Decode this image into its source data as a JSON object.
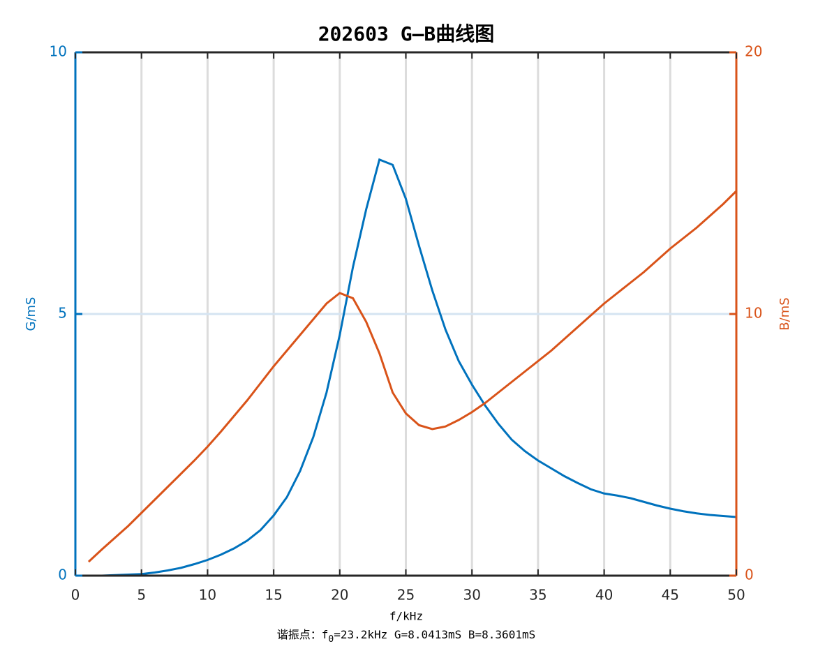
{
  "chart_data": {
    "type": "line",
    "title": "202603 G—B曲线图",
    "xlabel": "f/kHz",
    "ylabel": "G/mS",
    "y2label": "B/mS",
    "annotation": {
      "prefix": "谐振点：f",
      "subscript": "0",
      "suffix": "=23.2kHz  G=8.0413mS  B=8.3601mS"
    },
    "x": [
      1,
      2,
      3,
      4,
      5,
      6,
      7,
      8,
      9,
      10,
      11,
      12,
      13,
      14,
      15,
      16,
      17,
      18,
      19,
      20,
      21,
      22,
      23,
      24,
      25,
      26,
      27,
      28,
      29,
      30,
      31,
      32,
      33,
      34,
      35,
      36,
      37,
      38,
      39,
      40,
      41,
      42,
      43,
      44,
      45,
      46,
      47,
      48,
      49,
      50
    ],
    "series": [
      {
        "name": "G",
        "color": "#0072bd",
        "axis": "y",
        "values": [
          0,
          0,
          0.01,
          0.02,
          0.03,
          0.06,
          0.1,
          0.15,
          0.22,
          0.3,
          0.4,
          0.52,
          0.67,
          0.87,
          1.15,
          1.5,
          2.0,
          2.65,
          3.5,
          4.6,
          5.9,
          7.0,
          7.95,
          7.85,
          7.2,
          6.3,
          5.45,
          4.7,
          4.1,
          3.65,
          3.25,
          2.9,
          2.6,
          2.38,
          2.2,
          2.05,
          1.9,
          1.77,
          1.65,
          1.57,
          1.53,
          1.48,
          1.41,
          1.34,
          1.28,
          1.23,
          1.19,
          1.16,
          1.14,
          1.12
        ]
      },
      {
        "name": "B",
        "color": "#d95319",
        "axis": "y2",
        "values": [
          0.53,
          1.0,
          1.45,
          1.9,
          2.4,
          2.9,
          3.4,
          3.9,
          4.4,
          4.93,
          5.5,
          6.1,
          6.7,
          7.35,
          8.0,
          8.6,
          9.2,
          9.8,
          10.4,
          10.8,
          10.6,
          9.7,
          8.5,
          7.0,
          6.2,
          5.75,
          5.6,
          5.7,
          5.95,
          6.25,
          6.6,
          7.0,
          7.4,
          7.8,
          8.2,
          8.6,
          9.05,
          9.5,
          9.95,
          10.4,
          10.8,
          11.2,
          11.6,
          12.05,
          12.5,
          12.9,
          13.3,
          13.75,
          14.2,
          14.7
        ]
      }
    ],
    "xlim": [
      0,
      50
    ],
    "xticks": [
      0,
      5,
      10,
      15,
      20,
      25,
      30,
      35,
      40,
      45,
      50
    ],
    "ylim": [
      0,
      10
    ],
    "yticks": [
      0,
      5,
      10
    ],
    "y2lim": [
      0,
      20
    ],
    "y2ticks": [
      0,
      10,
      20
    ],
    "grid": true
  }
}
